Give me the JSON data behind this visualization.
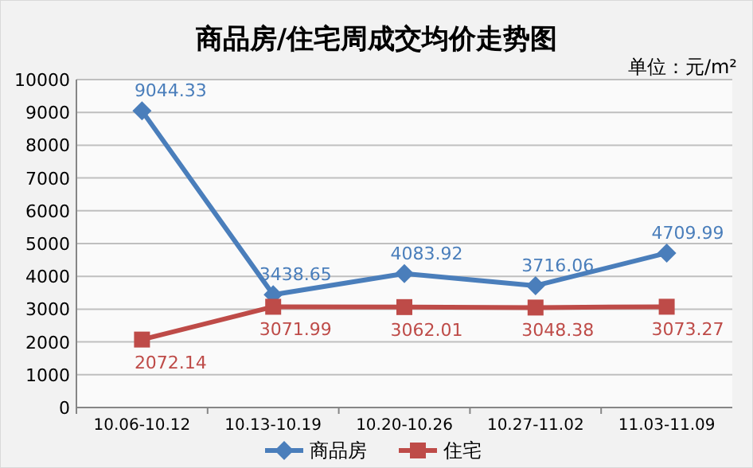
{
  "chart_data": {
    "type": "line",
    "title": "商品房/住宅周成交均价走势图",
    "annotations": [
      "单位：元/m²"
    ],
    "categories": [
      "10.06-10.12",
      "10.13-10.19",
      "10.20-10.26",
      "10.27-11.02",
      "11.03-11.09"
    ],
    "series": [
      {
        "name": "商品房",
        "color": "#4a7ebb",
        "marker": "diamond",
        "values": [
          9044.33,
          3438.65,
          4083.92,
          3716.06,
          4709.99
        ]
      },
      {
        "name": "住宅",
        "color": "#be4b48",
        "marker": "square",
        "values": [
          2072.14,
          3071.99,
          3062.01,
          3048.38,
          3073.27
        ]
      }
    ],
    "ylim": [
      0,
      10000
    ],
    "yticks": [
      0,
      1000,
      2000,
      3000,
      4000,
      5000,
      6000,
      7000,
      8000,
      9000,
      10000
    ],
    "grid": "y",
    "legend": "bottom",
    "data_labels": true
  }
}
